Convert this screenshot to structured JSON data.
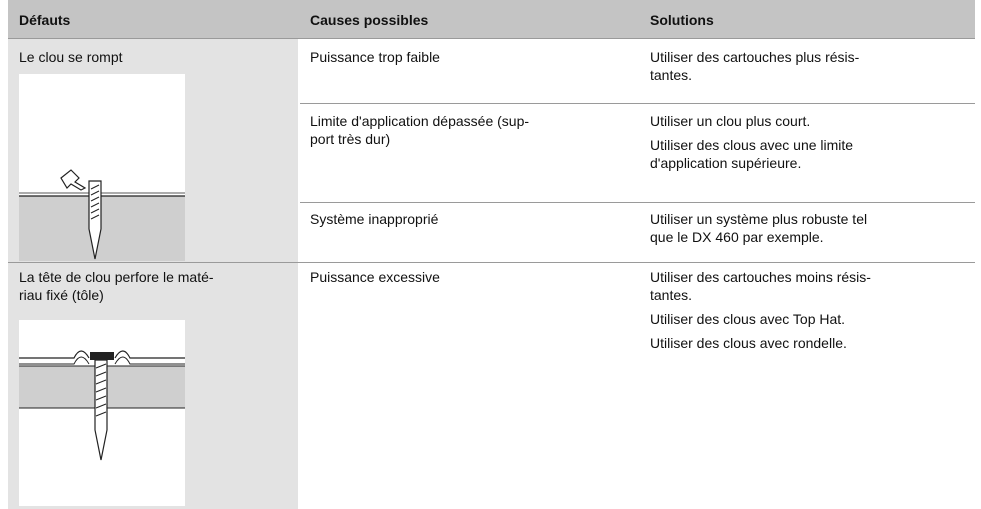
{
  "header": {
    "columns": [
      "Défauts",
      "Causes possibles",
      "Solutions"
    ]
  },
  "table": {
    "rows": [
      {
        "defect": "Le clou se rompt",
        "causes": [
          {
            "cause": "Puissance trop faible",
            "solutions": [
              "Utiliser des cartouches plus résis-\ntantes."
            ]
          },
          {
            "cause": "Limite d'application dépassée (sup-\nport très dur)",
            "solutions": [
              "Utiliser un clou plus court.",
              "Utiliser des clous avec une limite\nd'application supérieure."
            ]
          },
          {
            "cause": "Système inapproprié",
            "solutions": [
              "Utiliser un système plus robuste tel\nque le DX 460 par exemple."
            ]
          }
        ]
      },
      {
        "defect": "La tête de clou perfore le maté-\nriau fixé (tôle)",
        "causes": [
          {
            "cause": "Puissance excessive",
            "solutions": [
              "Utiliser des cartouches moins résis-\ntantes.",
              "Utiliser des clous avec Top Hat.",
              "Utiliser des clous avec rondelle."
            ]
          }
        ]
      }
    ]
  }
}
